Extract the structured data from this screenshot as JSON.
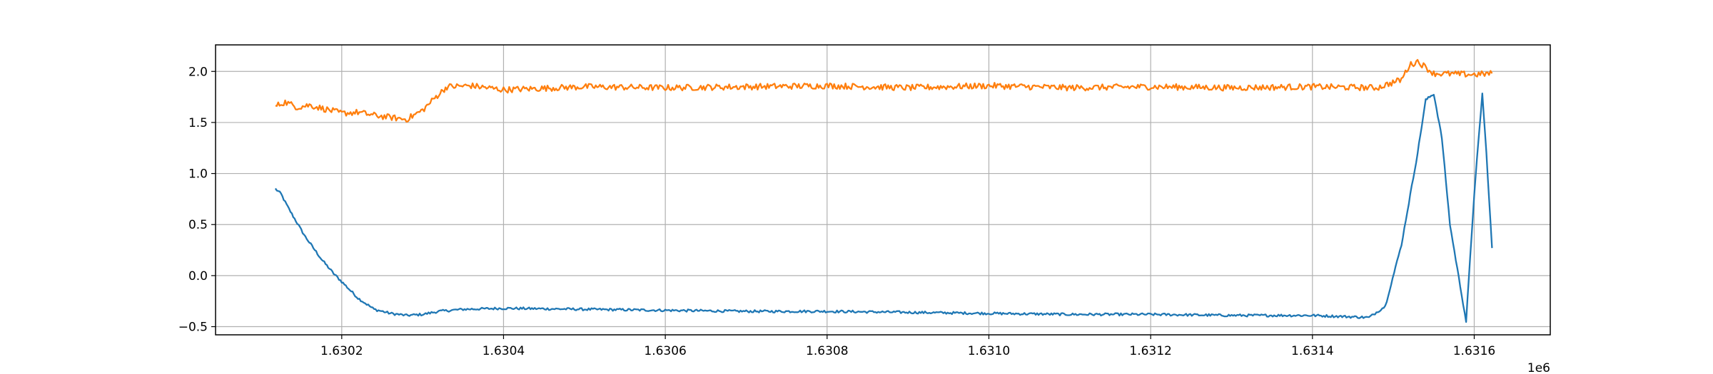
{
  "chart_data": {
    "type": "line",
    "title": "",
    "xlabel": "",
    "ylabel": "",
    "x_offset_label": "1e6",
    "xlim": [
      1.630044,
      1.631694
    ],
    "ylim": [
      -0.58,
      2.26
    ],
    "x_ticks": [
      1.6302,
      1.6304,
      1.6306,
      1.6308,
      1.631,
      1.6312,
      1.6314,
      1.6316
    ],
    "x_tick_labels": [
      "1.6302",
      "1.6304",
      "1.6306",
      "1.6308",
      "1.6310",
      "1.6312",
      "1.6314",
      "1.6316"
    ],
    "y_ticks": [
      -0.5,
      0.0,
      0.5,
      1.0,
      1.5,
      2.0
    ],
    "y_tick_labels": [
      "−0.5",
      "0.0",
      "0.5",
      "1.0",
      "1.5",
      "2.0"
    ],
    "grid": true,
    "legend": "none",
    "series": [
      {
        "color": "#1f77b4",
        "x": [
          1.630118,
          1.630125,
          1.63013,
          1.63014,
          1.630155,
          1.630165,
          1.630175,
          1.63019,
          1.6302,
          1.63021,
          1.63022,
          1.63024,
          1.63026,
          1.63028,
          1.6303,
          1.63032,
          1.63035,
          1.6304,
          1.6305,
          1.6306,
          1.6307,
          1.6308,
          1.6309,
          1.631,
          1.6311,
          1.6312,
          1.6313,
          1.6314,
          1.63147,
          1.63149,
          1.63151,
          1.63153,
          1.63154,
          1.63155,
          1.63156,
          1.63157,
          1.63159,
          1.6316,
          1.63161,
          1.631615,
          1.631622
        ],
        "y": [
          0.85,
          0.8,
          0.72,
          0.58,
          0.38,
          0.27,
          0.16,
          0.02,
          -0.06,
          -0.14,
          -0.22,
          -0.33,
          -0.37,
          -0.39,
          -0.38,
          -0.35,
          -0.33,
          -0.32,
          -0.33,
          -0.34,
          -0.35,
          -0.35,
          -0.36,
          -0.37,
          -0.38,
          -0.38,
          -0.39,
          -0.39,
          -0.41,
          -0.3,
          0.3,
          1.2,
          1.72,
          1.78,
          1.35,
          0.5,
          -0.45,
          0.8,
          1.78,
          1.2,
          0.27
        ]
      },
      {
        "color": "#ff7f0e",
        "x": [
          1.630118,
          1.63013,
          1.630145,
          1.63016,
          1.63018,
          1.6302,
          1.63022,
          1.63024,
          1.63026,
          1.63028,
          1.6303,
          1.630315,
          1.63033,
          1.63036,
          1.6304,
          1.6305,
          1.6306,
          1.6307,
          1.6308,
          1.6309,
          1.631,
          1.6311,
          1.6312,
          1.6313,
          1.6314,
          1.63148,
          1.63151,
          1.63152,
          1.63153,
          1.63155,
          1.6316,
          1.631622
        ],
        "y": [
          1.66,
          1.7,
          1.65,
          1.67,
          1.63,
          1.59,
          1.6,
          1.57,
          1.55,
          1.53,
          1.62,
          1.74,
          1.85,
          1.86,
          1.82,
          1.85,
          1.84,
          1.85,
          1.86,
          1.84,
          1.86,
          1.84,
          1.85,
          1.84,
          1.85,
          1.84,
          1.92,
          2.06,
          2.1,
          1.98,
          1.97,
          1.98
        ]
      }
    ]
  }
}
